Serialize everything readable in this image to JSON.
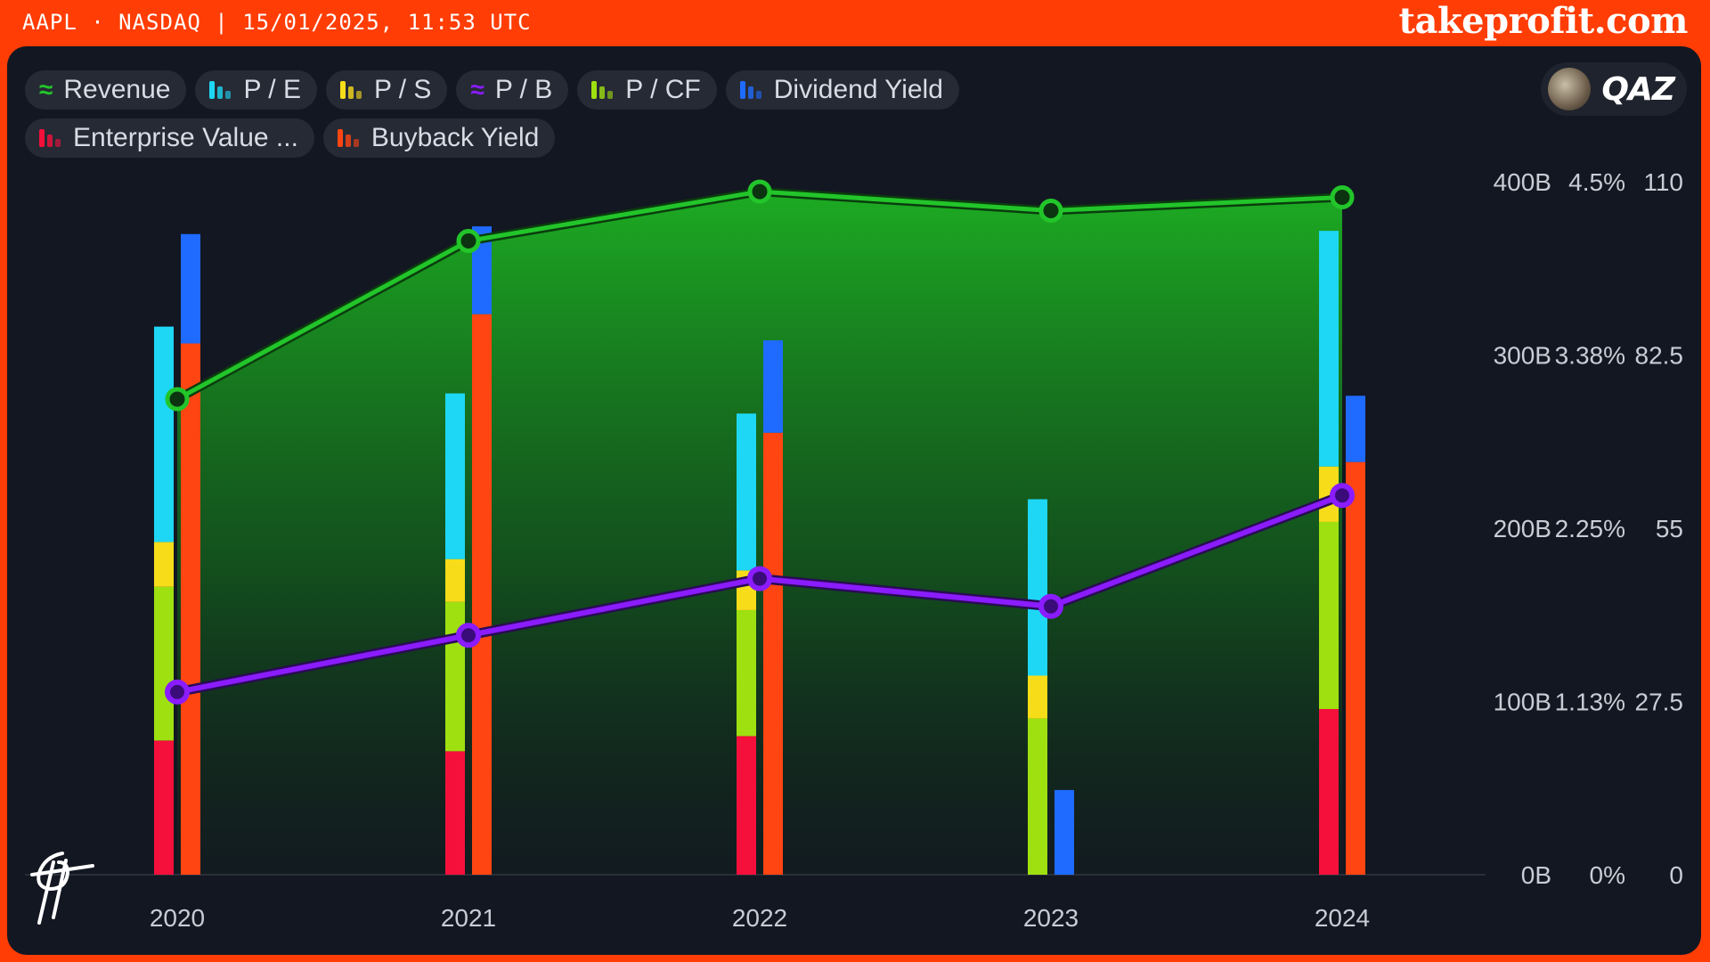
{
  "header": {
    "ticker_info": "AAPL · NASDAQ | 15/01/2025, 11:53 UTC",
    "brand": "takeprofit.com"
  },
  "user": {
    "name": "QAZ"
  },
  "legend": [
    {
      "label": "Revenue",
      "icon": "area-wave-icon",
      "color": "#22c52a",
      "row": 0
    },
    {
      "label": "P / E",
      "icon": "bars-icon",
      "color": "#1ed7f5",
      "row": 0
    },
    {
      "label": "P / S",
      "icon": "bars-icon",
      "color": "#f7dc1a",
      "row": 0
    },
    {
      "label": "P / B",
      "icon": "line-wave-icon",
      "color": "#8a1cff",
      "row": 0
    },
    {
      "label": "P / CF",
      "icon": "bars-icon",
      "color": "#9fe011",
      "row": 0
    },
    {
      "label": "Dividend Yield",
      "icon": "bars-icon",
      "color": "#1f6bff",
      "row": 0
    },
    {
      "label": "Enterprise Value ...",
      "icon": "bars-icon",
      "color": "#f5103c",
      "row": 1
    },
    {
      "label": "Buyback Yield",
      "icon": "bars-icon",
      "color": "#ff4512",
      "row": 1
    }
  ],
  "chart_data": {
    "type": "bar",
    "categories": [
      "2020",
      "2021",
      "2022",
      "2023",
      "2024"
    ],
    "axes": {
      "revenue": {
        "ticks": [
          "400B",
          "300B",
          "200B",
          "100B",
          "0B"
        ],
        "range": [
          0,
          400
        ]
      },
      "percent": {
        "ticks": [
          "4.5%",
          "3.38%",
          "2.25%",
          "1.13%",
          "0%"
        ],
        "range": [
          0,
          4.5
        ]
      },
      "ratio": {
        "ticks": [
          "110",
          "82.5",
          "55",
          "27.5",
          "0"
        ],
        "range": [
          0,
          110
        ]
      }
    },
    "series": [
      {
        "name": "Revenue",
        "kind": "area",
        "axis": "revenue",
        "color": "#22c52a",
        "values": [
          274.5,
          365.8,
          394.3,
          383.3,
          391.0
        ]
      },
      {
        "name": "P / B",
        "kind": "line",
        "axis": "ratio",
        "color": "#8a1cff",
        "values": [
          29.0,
          38.0,
          47.0,
          42.6,
          60.2
        ]
      },
      {
        "name": "Enterprise Value ...",
        "kind": "stack",
        "axis": "ratio",
        "color": "#f5103c",
        "values": [
          21.3,
          19.6,
          22.0,
          0,
          26.3
        ]
      },
      {
        "name": "P / CF",
        "kind": "stack",
        "axis": "ratio",
        "color": "#9fe011",
        "values": [
          24.4,
          23.7,
          20.0,
          24.8,
          29.7
        ]
      },
      {
        "name": "P / S",
        "kind": "stack",
        "axis": "ratio",
        "color": "#f7dc1a",
        "values": [
          7.1,
          6.8,
          6.3,
          6.8,
          8.8
        ]
      },
      {
        "name": "P / E",
        "kind": "stack",
        "axis": "ratio",
        "color": "#1ed7f5",
        "values": [
          34.2,
          26.3,
          24.9,
          28.0,
          37.4
        ]
      },
      {
        "name": "Buyback Yield",
        "kind": "stack2",
        "axis": "percent",
        "color": "#ff4512",
        "values": [
          3.45,
          3.64,
          2.87,
          0,
          2.68
        ]
      },
      {
        "name": "Dividend Yield",
        "kind": "stack2",
        "axis": "percent",
        "color": "#1f6bff",
        "values": [
          0.71,
          0.57,
          0.6,
          0.55,
          0.43
        ]
      }
    ],
    "grid": false,
    "legend_position": "top-left"
  }
}
